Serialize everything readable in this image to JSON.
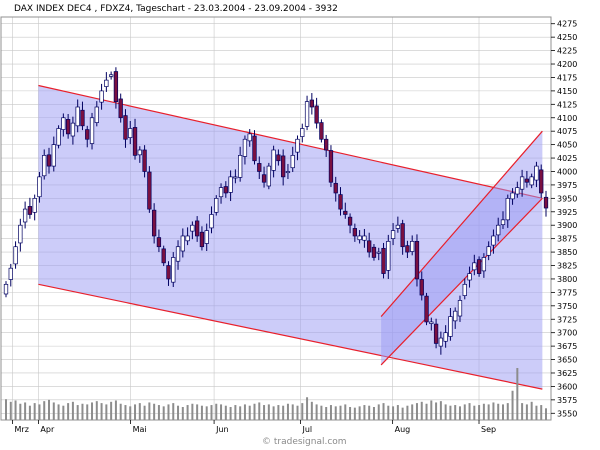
{
  "title": "DAX INDEX DEC4   , FDXZ4, Tageschart - 23.03.2004 - 23.09.2004 - 3932",
  "watermark": "© tradesignal.com",
  "colors": {
    "background": "#ffffff",
    "grid": "#c8c8c8",
    "channel_fill": "#9a9af4",
    "channel_line": "#e8202c",
    "candle_up": "#ffffff",
    "candle_down": "#7a1040",
    "candle_outline": "#000060",
    "volume": "#8c8c8c"
  },
  "chart_data": {
    "type": "candlestick",
    "title": "DAX INDEX DEC4   , FDXZ4, Tageschart - 23.03.2004 - 23.09.2004 - 3932",
    "date_range": [
      "2004-03-23",
      "2004-09-23"
    ],
    "ylim": [
      3550,
      4275
    ],
    "y_ticks": [
      3550,
      3575,
      3600,
      3625,
      3650,
      3675,
      3700,
      3725,
      3750,
      3775,
      3800,
      3825,
      3850,
      3875,
      3900,
      3925,
      3950,
      3975,
      4000,
      4025,
      4050,
      4075,
      4100,
      4125,
      4150,
      4175,
      4200,
      4225,
      4250,
      4275
    ],
    "x_ticks": [
      {
        "label": "Mrz",
        "date": "2004-03-23"
      },
      {
        "label": "Apr",
        "date": "2004-04-01"
      },
      {
        "label": "Mai",
        "date": "2004-05-03"
      },
      {
        "label": "Jun",
        "date": "2004-06-01"
      },
      {
        "label": "Jul",
        "date": "2004-07-01"
      },
      {
        "label": "Aug",
        "date": "2004-08-02"
      },
      {
        "label": "Sep",
        "date": "2004-09-01"
      }
    ],
    "grid": true,
    "closes": [
      3790,
      3820,
      3860,
      3900,
      3930,
      3920,
      3950,
      3990,
      4030,
      4010,
      4050,
      4080,
      4100,
      4070,
      4090,
      4120,
      4085,
      4060,
      4100,
      4120,
      4150,
      4170,
      4180,
      4130,
      4100,
      4060,
      4080,
      4030,
      4040,
      4000,
      3930,
      3880,
      3860,
      3830,
      3800,
      3840,
      3860,
      3880,
      3880,
      3900,
      3880,
      3860,
      3890,
      3920,
      3950,
      3970,
      3960,
      3990,
      3990,
      4030,
      4060,
      4070,
      4020,
      4000,
      3980,
      4010,
      4040,
      4020,
      3990,
      4000,
      4030,
      4060,
      4080,
      4130,
      4120,
      4090,
      4060,
      4040,
      3980,
      3960,
      3930,
      3920,
      3900,
      3880,
      3880,
      3880,
      3850,
      3840,
      3850,
      3810,
      3870,
      3890,
      3900,
      3860,
      3850,
      3870,
      3800,
      3770,
      3720,
      3720,
      3680,
      3690,
      3700,
      3730,
      3740,
      3760,
      3790,
      3810,
      3830,
      3810,
      3840,
      3860,
      3880,
      3900,
      3910,
      3950,
      3960,
      3970,
      3990,
      3980,
      3990,
      4010,
      3960,
      3932
    ],
    "volume": [
      32,
      28,
      30,
      25,
      27,
      22,
      26,
      24,
      29,
      31,
      27,
      24,
      22,
      26,
      28,
      23,
      25,
      24,
      27,
      29,
      26,
      24,
      28,
      30,
      25,
      23,
      21,
      24,
      26,
      22,
      27,
      25,
      23,
      21,
      24,
      26,
      22,
      20,
      23,
      25,
      24,
      22,
      21,
      23,
      25,
      24,
      22,
      20,
      23,
      21,
      24,
      22,
      25,
      27,
      23,
      24,
      21,
      23,
      22,
      25,
      24,
      22,
      26,
      35,
      28,
      24,
      22,
      20,
      23,
      21,
      22,
      24,
      20,
      19,
      21,
      23,
      22,
      20,
      24,
      26,
      22,
      21,
      23,
      19,
      22,
      24,
      26,
      28,
      25,
      30,
      27,
      29,
      24,
      22,
      23,
      21,
      24,
      26,
      22,
      23,
      25,
      24,
      27,
      25,
      24,
      26,
      45,
      80,
      26,
      24,
      28,
      22,
      23,
      18
    ],
    "channels": [
      {
        "name": "",
        "upper": [
          {
            "x": "2004-04-01",
            "y": 4160
          },
          {
            "x": "2004-09-23",
            "y": 3950
          }
        ],
        "lower": [
          {
            "x": "2004-04-01",
            "y": 3790
          },
          {
            "x": "2004-09-23",
            "y": 3595
          }
        ]
      },
      {
        "name": "",
        "upper": [
          {
            "x": "2004-07-29",
            "y": 3730
          },
          {
            "x": "2004-09-23",
            "y": 4075
          }
        ],
        "lower": [
          {
            "x": "2004-07-29",
            "y": 3640
          },
          {
            "x": "2004-09-23",
            "y": 3950
          }
        ]
      }
    ]
  }
}
